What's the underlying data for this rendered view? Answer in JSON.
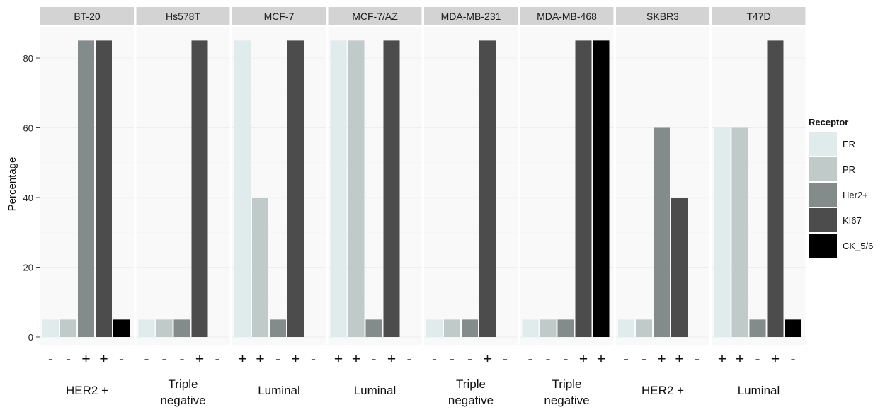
{
  "chart_data": {
    "type": "bar",
    "ylabel": "Percentage",
    "ylim": [
      0,
      88
    ],
    "yticks": [
      0,
      20,
      40,
      60,
      80
    ],
    "grid": true,
    "legend_title": "Receptor",
    "legend_position": "right",
    "series": [
      {
        "name": "ER",
        "color": "#e0ebeb"
      },
      {
        "name": "PR",
        "color": "#c0cac9"
      },
      {
        "name": "Her2+",
        "color": "#838b8b"
      },
      {
        "name": "KI67",
        "color": "#4c4c4c"
      },
      {
        "name": "CK_5/6",
        "color": "#000000"
      }
    ],
    "panels": [
      {
        "name": "BT-20",
        "values": [
          5,
          5,
          85,
          85,
          5
        ],
        "signs": [
          "-",
          "-",
          "+",
          "+",
          "-"
        ],
        "group": [
          "HER2 +"
        ]
      },
      {
        "name": "Hs578T",
        "values": [
          5,
          5,
          5,
          85,
          0
        ],
        "signs": [
          "-",
          "-",
          "-",
          "+",
          "-"
        ],
        "group": [
          "Triple",
          "negative"
        ]
      },
      {
        "name": "MCF-7",
        "values": [
          85,
          40,
          5,
          85,
          0
        ],
        "signs": [
          "+",
          "+",
          "-",
          "+",
          "-"
        ],
        "group": [
          "Luminal"
        ]
      },
      {
        "name": "MCF-7/AZ",
        "values": [
          85,
          85,
          5,
          85,
          0
        ],
        "signs": [
          "+",
          "+",
          "-",
          "+",
          "-"
        ],
        "group": [
          "Luminal"
        ]
      },
      {
        "name": "MDA-MB-231",
        "values": [
          5,
          5,
          5,
          85,
          0
        ],
        "signs": [
          "-",
          "-",
          "-",
          "+",
          "-"
        ],
        "group": [
          "Triple",
          "negative"
        ]
      },
      {
        "name": "MDA-MB-468",
        "values": [
          5,
          5,
          5,
          85,
          85
        ],
        "signs": [
          "-",
          "-",
          "-",
          "+",
          "+"
        ],
        "group": [
          "Triple",
          "negative"
        ]
      },
      {
        "name": "SKBR3",
        "values": [
          5,
          5,
          60,
          40,
          0
        ],
        "signs": [
          "-",
          "-",
          "+",
          "+",
          "-"
        ],
        "group": [
          "HER2 +"
        ]
      },
      {
        "name": "T47D",
        "values": [
          60,
          60,
          5,
          85,
          5
        ],
        "signs": [
          "+",
          "+",
          "-",
          "+",
          "-"
        ],
        "group": [
          "Luminal"
        ]
      }
    ]
  }
}
